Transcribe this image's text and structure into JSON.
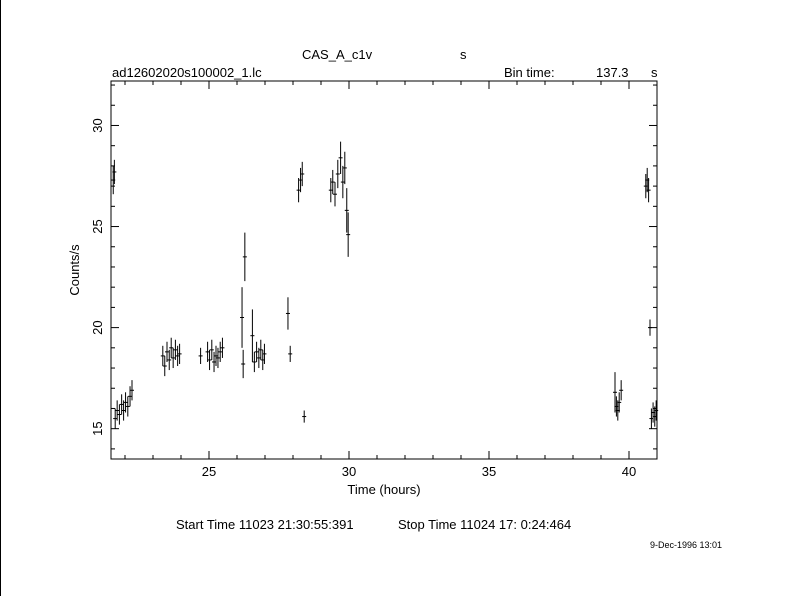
{
  "chart_data": {
    "type": "scatter",
    "title": "CAS_A_c1v",
    "title_unit": "s",
    "file_label": "ad12602020s100002_1.lc",
    "bin_time_label": "Bin time:",
    "bin_time_value": "137.3",
    "bin_time_unit": "s",
    "xlabel": "Time (hours)",
    "ylabel": "Counts/s",
    "xlim": [
      21.5,
      41.0
    ],
    "ylim": [
      13.5,
      32.2
    ],
    "x_ticks": [
      25,
      30,
      35,
      40
    ],
    "y_ticks": [
      15,
      20,
      25,
      30
    ],
    "grid": false,
    "legend": "none",
    "color": "#000000",
    "series": [
      {
        "points": [
          {
            "x": 21.58,
            "y": 27.3,
            "err": 0.7
          },
          {
            "x": 21.62,
            "y": 27.7,
            "err": 0.6
          },
          {
            "x": 21.65,
            "y": 15.5,
            "err": 0.5
          },
          {
            "x": 21.72,
            "y": 15.9,
            "err": 0.5
          },
          {
            "x": 21.8,
            "y": 15.7,
            "err": 0.5
          },
          {
            "x": 21.88,
            "y": 16.2,
            "err": 0.5
          },
          {
            "x": 21.95,
            "y": 15.9,
            "err": 0.5
          },
          {
            "x": 22.02,
            "y": 16.3,
            "err": 0.5
          },
          {
            "x": 22.1,
            "y": 16.1,
            "err": 0.5
          },
          {
            "x": 22.18,
            "y": 16.6,
            "err": 0.5
          },
          {
            "x": 22.25,
            "y": 16.9,
            "err": 0.5
          },
          {
            "x": 23.35,
            "y": 18.6,
            "err": 0.5
          },
          {
            "x": 23.42,
            "y": 18.1,
            "err": 0.5
          },
          {
            "x": 23.5,
            "y": 18.8,
            "err": 0.5
          },
          {
            "x": 23.58,
            "y": 18.4,
            "err": 0.5
          },
          {
            "x": 23.65,
            "y": 19.0,
            "err": 0.5
          },
          {
            "x": 23.72,
            "y": 18.5,
            "err": 0.5
          },
          {
            "x": 23.8,
            "y": 18.9,
            "err": 0.5
          },
          {
            "x": 23.88,
            "y": 18.6,
            "err": 0.5
          },
          {
            "x": 23.95,
            "y": 18.7,
            "err": 0.5
          },
          {
            "x": 24.7,
            "y": 18.6,
            "err": 0.4
          },
          {
            "x": 24.95,
            "y": 18.8,
            "err": 0.5
          },
          {
            "x": 25.02,
            "y": 18.4,
            "err": 0.5
          },
          {
            "x": 25.1,
            "y": 18.9,
            "err": 0.5
          },
          {
            "x": 25.18,
            "y": 18.3,
            "err": 0.5
          },
          {
            "x": 25.25,
            "y": 18.6,
            "err": 0.5
          },
          {
            "x": 25.32,
            "y": 18.5,
            "err": 0.5
          },
          {
            "x": 25.4,
            "y": 18.8,
            "err": 0.5
          },
          {
            "x": 25.48,
            "y": 19.0,
            "err": 0.5
          },
          {
            "x": 26.18,
            "y": 20.5,
            "err": 1.5
          },
          {
            "x": 26.22,
            "y": 18.2,
            "err": 0.7
          },
          {
            "x": 26.28,
            "y": 23.5,
            "err": 1.2
          },
          {
            "x": 26.55,
            "y": 19.6,
            "err": 1.3
          },
          {
            "x": 26.62,
            "y": 18.3,
            "err": 0.5
          },
          {
            "x": 26.7,
            "y": 18.8,
            "err": 0.5
          },
          {
            "x": 26.78,
            "y": 18.5,
            "err": 0.5
          },
          {
            "x": 26.85,
            "y": 18.9,
            "err": 0.5
          },
          {
            "x": 26.92,
            "y": 18.4,
            "err": 0.5
          },
          {
            "x": 26.98,
            "y": 18.7,
            "err": 0.5
          },
          {
            "x": 27.82,
            "y": 20.7,
            "err": 0.8
          },
          {
            "x": 27.9,
            "y": 18.7,
            "err": 0.4
          },
          {
            "x": 28.2,
            "y": 26.8,
            "err": 0.6
          },
          {
            "x": 28.27,
            "y": 27.3,
            "err": 0.6
          },
          {
            "x": 28.33,
            "y": 27.6,
            "err": 0.6
          },
          {
            "x": 28.4,
            "y": 15.6,
            "err": 0.3
          },
          {
            "x": 29.35,
            "y": 26.8,
            "err": 0.6
          },
          {
            "x": 29.42,
            "y": 27.2,
            "err": 0.6
          },
          {
            "x": 29.5,
            "y": 26.6,
            "err": 0.6
          },
          {
            "x": 29.6,
            "y": 27.6,
            "err": 0.7
          },
          {
            "x": 29.7,
            "y": 28.4,
            "err": 0.8
          },
          {
            "x": 29.78,
            "y": 27.2,
            "err": 0.8
          },
          {
            "x": 29.85,
            "y": 27.9,
            "err": 0.8
          },
          {
            "x": 29.92,
            "y": 25.8,
            "err": 1.1
          },
          {
            "x": 29.97,
            "y": 24.6,
            "err": 1.1
          },
          {
            "x": 39.5,
            "y": 16.8,
            "err": 1.0
          },
          {
            "x": 39.55,
            "y": 16.1,
            "err": 0.5
          },
          {
            "x": 39.6,
            "y": 15.9,
            "err": 0.5
          },
          {
            "x": 39.65,
            "y": 16.3,
            "err": 0.5
          },
          {
            "x": 39.72,
            "y": 16.9,
            "err": 0.5
          },
          {
            "x": 40.6,
            "y": 27.0,
            "err": 0.6
          },
          {
            "x": 40.65,
            "y": 27.3,
            "err": 0.6
          },
          {
            "x": 40.7,
            "y": 26.8,
            "err": 0.6
          },
          {
            "x": 40.75,
            "y": 20.0,
            "err": 0.4
          },
          {
            "x": 40.8,
            "y": 15.5,
            "err": 0.5
          },
          {
            "x": 40.86,
            "y": 15.8,
            "err": 0.5
          },
          {
            "x": 40.92,
            "y": 15.6,
            "err": 0.5
          },
          {
            "x": 40.97,
            "y": 15.9,
            "err": 0.5
          }
        ]
      }
    ],
    "start_time": "Start Time 11023 21:30:55:391",
    "stop_time": "Stop Time 11024 17: 0:24:464",
    "date_stamp": "9-Dec-1996 13:01"
  }
}
